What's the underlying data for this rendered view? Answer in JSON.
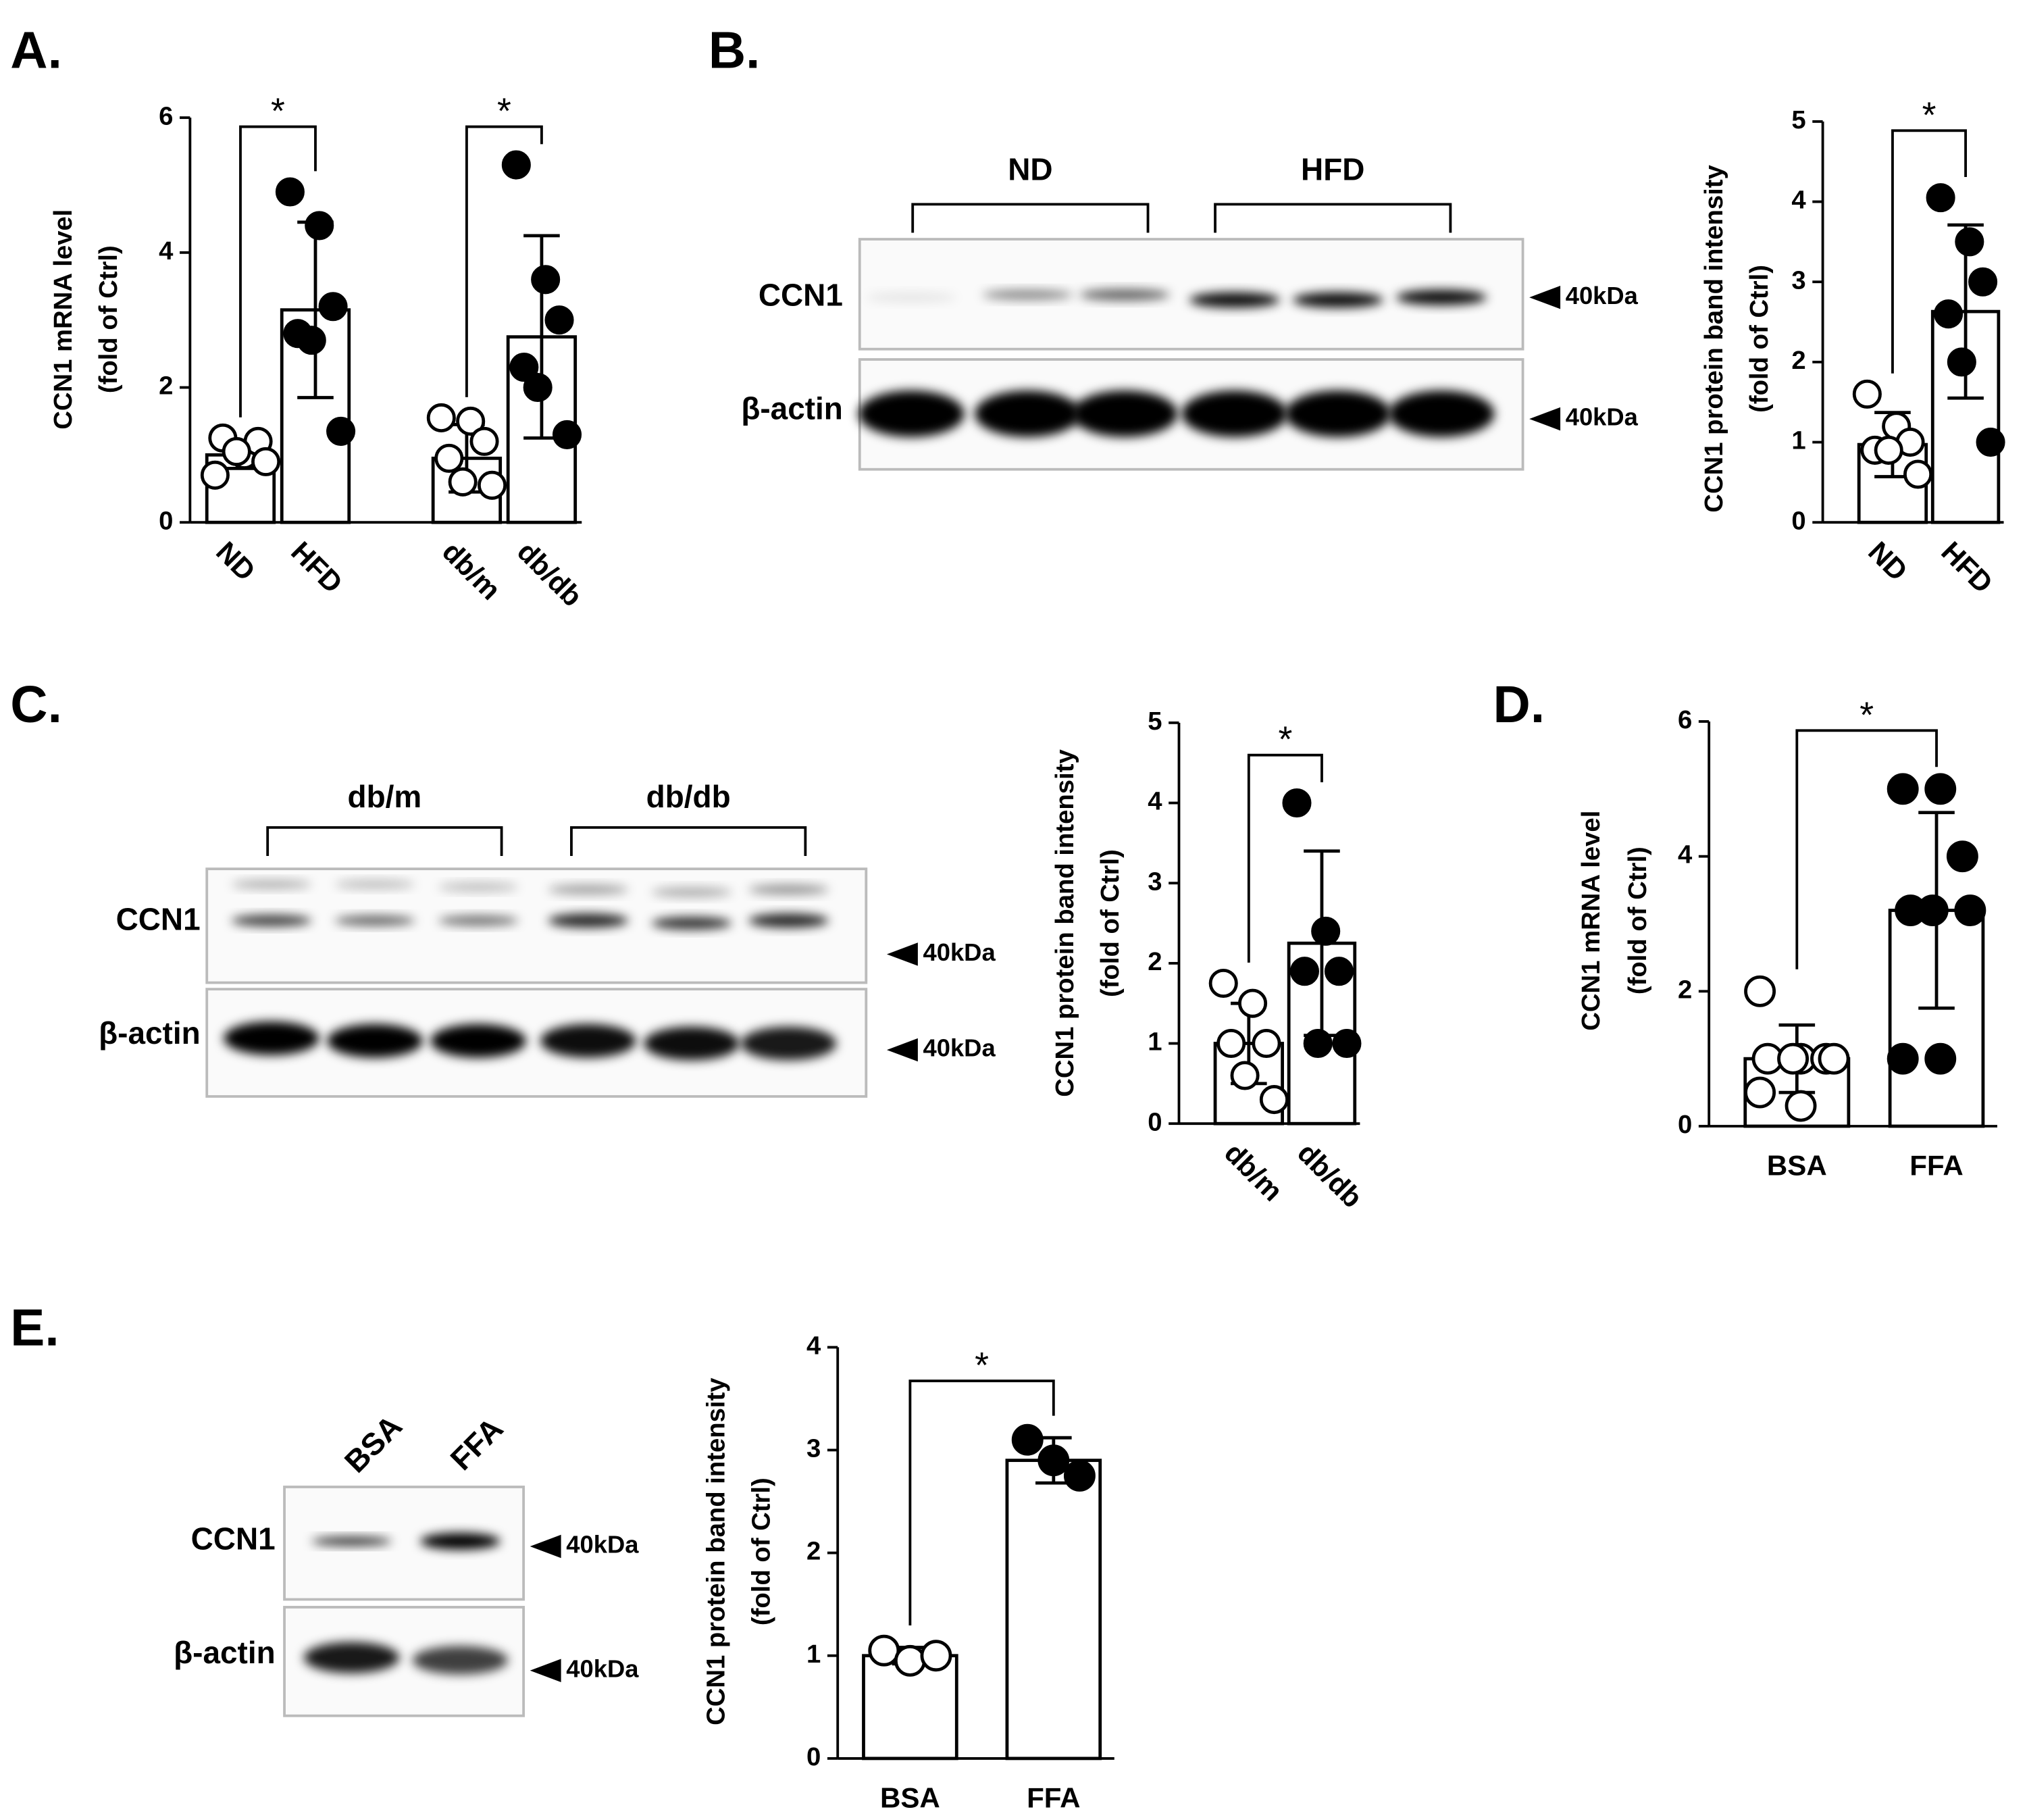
{
  "panel_labels": [
    "A.",
    "B.",
    "C.",
    "D.",
    "E."
  ],
  "chart_data": [
    {
      "type": "bar",
      "categories": [
        "ND",
        "HFD",
        "db/m",
        "db/db"
      ],
      "values": [
        1.0,
        3.15,
        0.95,
        2.75
      ],
      "errors": [
        0.2,
        1.3,
        0.5,
        1.5
      ],
      "points": [
        [
          0.7,
          1.0,
          1.2,
          1.25,
          1.05,
          0.9
        ],
        [
          4.9,
          4.4,
          3.2,
          2.8,
          2.7,
          1.35
        ],
        [
          1.55,
          1.5,
          1.2,
          0.95,
          0.6,
          0.55
        ],
        [
          5.3,
          3.6,
          3.0,
          2.3,
          2.0,
          1.3
        ]
      ],
      "point_colors": [
        "#ffffff",
        "#000000",
        "#ffffff",
        "#000000"
      ],
      "color": "#ffffff",
      "ylim": [
        0,
        6
      ],
      "yticks": [
        0,
        2,
        4,
        6
      ],
      "y_label": [
        "CCN1 mRNA level",
        "(fold of Ctrl)"
      ],
      "significance": [
        {
          "label": "*",
          "pair": [
            0,
            1
          ]
        },
        {
          "label": "*",
          "pair": [
            2,
            3
          ]
        }
      ],
      "x_label_rotation": 45
    },
    {
      "type": "bar",
      "categories": [
        "ND",
        "HFD"
      ],
      "values": [
        0.97,
        2.63
      ],
      "errors": [
        0.4,
        1.08
      ],
      "points": [
        [
          1.6,
          1.2,
          1.0,
          0.9,
          0.9,
          0.6
        ],
        [
          4.05,
          3.5,
          3.0,
          2.6,
          2.0,
          1.0
        ]
      ],
      "point_colors": [
        "#ffffff",
        "#000000"
      ],
      "color": "#ffffff",
      "ylim": [
        0,
        5
      ],
      "yticks": [
        0,
        1,
        2,
        3,
        4,
        5
      ],
      "y_label": [
        "CCN1 protein band intensity",
        "(fold of Ctrl)"
      ],
      "significance": [
        {
          "label": "*",
          "pair": [
            0,
            1
          ]
        }
      ],
      "x_label_rotation": 45
    },
    {
      "type": "bar",
      "categories": [
        "db/m",
        "db/db"
      ],
      "values": [
        1.0,
        2.25
      ],
      "errors": [
        0.5,
        1.15
      ],
      "points": [
        [
          1.75,
          1.5,
          1.0,
          1.0,
          0.6,
          0.3
        ],
        [
          4.0,
          2.4,
          1.9,
          1.9,
          1.0,
          1.0
        ]
      ],
      "point_colors": [
        "#ffffff",
        "#000000"
      ],
      "color": "#ffffff",
      "ylim": [
        0,
        5
      ],
      "yticks": [
        0,
        1,
        2,
        3,
        4,
        5
      ],
      "y_label": [
        "CCN1 protein band intensity",
        "(fold of Ctrl)"
      ],
      "significance": [
        {
          "label": "*",
          "pair": [
            0,
            1
          ]
        }
      ],
      "x_label_rotation": 45
    },
    {
      "type": "bar",
      "categories": [
        "BSA",
        "FFA"
      ],
      "values": [
        1.0,
        3.2
      ],
      "errors": [
        0.5,
        1.45
      ],
      "points": [
        [
          2.0,
          1.0,
          1.0,
          1.0,
          1.0,
          1.0,
          0.5,
          0.3
        ],
        [
          5.0,
          5.0,
          4.0,
          3.2,
          3.2,
          3.2,
          1.0,
          1.0
        ]
      ],
      "point_colors": [
        "#ffffff",
        "#000000"
      ],
      "color": "#ffffff",
      "ylim": [
        0,
        6
      ],
      "yticks": [
        0,
        2,
        4,
        6
      ],
      "y_label": [
        "CCN1 mRNA level",
        "(fold of Ctrl)"
      ],
      "significance": [
        {
          "label": "*",
          "pair": [
            0,
            1
          ]
        }
      ],
      "x_label_rotation": 0
    },
    {
      "type": "bar",
      "categories": [
        "BSA",
        "FFA"
      ],
      "values": [
        1.0,
        2.9
      ],
      "errors": [
        0.08,
        0.22
      ],
      "points": [
        [
          1.05,
          0.95,
          1.0
        ],
        [
          3.1,
          2.9,
          2.75
        ]
      ],
      "point_colors": [
        "#ffffff",
        "#000000"
      ],
      "color": "#ffffff",
      "ylim": [
        0,
        4
      ],
      "yticks": [
        0,
        1,
        2,
        3,
        4
      ],
      "y_label": [
        "CCN1 protein band intensity",
        "(fold of Ctrl)"
      ],
      "significance": [
        {
          "label": "*",
          "pair": [
            0,
            1
          ]
        }
      ],
      "x_label_rotation": 0
    }
  ],
  "blots": [
    {
      "lane_groups": [
        "ND",
        "HFD"
      ],
      "rows": [
        "CCN1",
        "β-actin"
      ],
      "markers": [
        "40kDa",
        "40kDa"
      ]
    },
    {
      "lane_groups": [
        "db/m",
        "db/db"
      ],
      "rows": [
        "CCN1",
        "β-actin"
      ],
      "markers": [
        "40kDa",
        "40kDa"
      ]
    },
    {
      "lane_labels": [
        "BSA",
        "FFA"
      ],
      "rows": [
        "CCN1",
        "β-actin"
      ],
      "markers": [
        "40kDa",
        "40kDa"
      ]
    }
  ]
}
